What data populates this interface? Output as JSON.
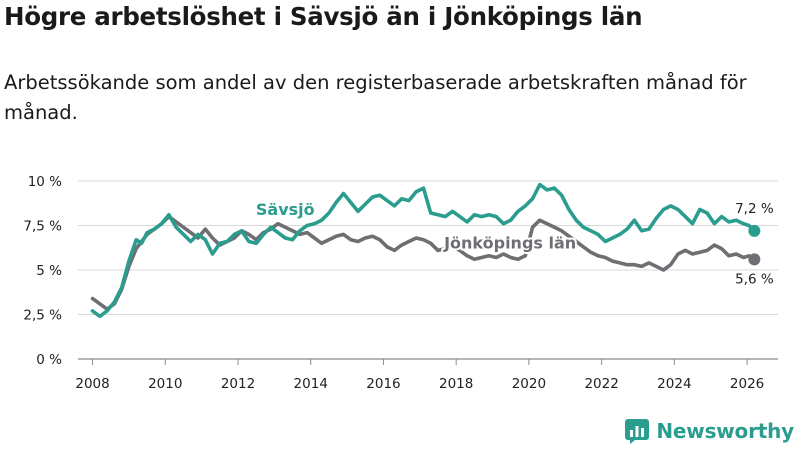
{
  "header": {
    "title": "Högre arbetslöshet i Sävsjö än i Jönköpings län",
    "subtitle": "Arbetssökande som andel av den registerbaserade arbetskraften månad för månad."
  },
  "brand": {
    "name": "Newsworthy",
    "icon": "newsworthy-logo-icon"
  },
  "chart_data": {
    "type": "line",
    "title": "Högre arbetslöshet i Sävsjö än i Jönköpings län",
    "subtitle": "Arbetssökande som andel av den registerbaserade arbetskraften månad för månad.",
    "xlabel": "",
    "ylabel": "",
    "xlim": [
      2007.6,
      2026.85
    ],
    "ylim": [
      0,
      10
    ],
    "grid": true,
    "x_ticks": [
      2008,
      2010,
      2012,
      2014,
      2016,
      2018,
      2020,
      2022,
      2024,
      2026
    ],
    "x_tick_labels": [
      "2008",
      "2010",
      "2012",
      "2014",
      "2016",
      "2018",
      "2020",
      "2022",
      "2024",
      "2026"
    ],
    "y_ticks": [
      0,
      2.5,
      5,
      7.5,
      10
    ],
    "y_tick_labels": [
      "0 %",
      "2,5 %",
      "5 %",
      "7,5 %",
      "10 %"
    ],
    "series": [
      {
        "name": "Sävsjö",
        "color": "#2a9d8f",
        "end_label": "7,2 %",
        "x": [
          2008.0,
          2008.2,
          2008.4,
          2008.6,
          2008.8,
          2009.0,
          2009.2,
          2009.35,
          2009.5,
          2009.7,
          2009.9,
          2010.1,
          2010.3,
          2010.5,
          2010.7,
          2010.9,
          2011.1,
          2011.3,
          2011.5,
          2011.7,
          2011.9,
          2012.1,
          2012.3,
          2012.5,
          2012.7,
          2012.9,
          2013.1,
          2013.3,
          2013.5,
          2013.7,
          2013.9,
          2014.1,
          2014.3,
          2014.5,
          2014.7,
          2014.9,
          2015.1,
          2015.3,
          2015.5,
          2015.7,
          2015.9,
          2016.1,
          2016.3,
          2016.5,
          2016.7,
          2016.9,
          2017.1,
          2017.3,
          2017.5,
          2017.7,
          2017.9,
          2018.1,
          2018.3,
          2018.5,
          2018.7,
          2018.9,
          2019.1,
          2019.3,
          2019.5,
          2019.7,
          2019.9,
          2020.1,
          2020.3,
          2020.5,
          2020.7,
          2020.9,
          2021.1,
          2021.3,
          2021.5,
          2021.7,
          2021.9,
          2022.1,
          2022.3,
          2022.5,
          2022.7,
          2022.9,
          2023.1,
          2023.3,
          2023.5,
          2023.7,
          2023.9,
          2024.1,
          2024.3,
          2024.5,
          2024.7,
          2024.9,
          2025.1,
          2025.3,
          2025.5,
          2025.7,
          2025.9,
          2026.05,
          2026.2
        ],
        "values": [
          2.7,
          2.4,
          2.7,
          3.2,
          4.0,
          5.5,
          6.7,
          6.5,
          7.1,
          7.3,
          7.6,
          8.1,
          7.4,
          7.0,
          6.6,
          7.0,
          6.7,
          5.9,
          6.5,
          6.6,
          7.0,
          7.2,
          6.6,
          6.5,
          7.0,
          7.4,
          7.1,
          6.8,
          6.7,
          7.2,
          7.5,
          7.6,
          7.8,
          8.2,
          8.8,
          9.3,
          8.8,
          8.3,
          8.7,
          9.1,
          9.2,
          8.9,
          8.6,
          9.0,
          8.9,
          9.4,
          9.6,
          8.2,
          8.1,
          8.0,
          8.3,
          8.0,
          7.7,
          8.1,
          8.0,
          8.1,
          8.0,
          7.6,
          7.8,
          8.3,
          8.6,
          9.0,
          9.8,
          9.5,
          9.6,
          9.2,
          8.4,
          7.8,
          7.4,
          7.2,
          7.0,
          6.6,
          6.8,
          7.0,
          7.3,
          7.8,
          7.2,
          7.3,
          7.9,
          8.4,
          8.6,
          8.4,
          8.0,
          7.6,
          8.4,
          8.2,
          7.6,
          8.0,
          7.7,
          7.8,
          7.6,
          7.5,
          7.2
        ]
      },
      {
        "name": "Jönköpings län",
        "color": "#6e6e73",
        "end_label": "5,6 %",
        "x": [
          2008.0,
          2008.2,
          2008.4,
          2008.6,
          2008.8,
          2009.0,
          2009.2,
          2009.35,
          2009.5,
          2009.7,
          2009.9,
          2010.1,
          2010.3,
          2010.5,
          2010.7,
          2010.9,
          2011.1,
          2011.3,
          2011.5,
          2011.7,
          2011.9,
          2012.1,
          2012.3,
          2012.5,
          2012.7,
          2012.9,
          2013.1,
          2013.3,
          2013.5,
          2013.7,
          2013.9,
          2014.1,
          2014.3,
          2014.5,
          2014.7,
          2014.9,
          2015.1,
          2015.3,
          2015.5,
          2015.7,
          2015.9,
          2016.1,
          2016.3,
          2016.5,
          2016.7,
          2016.9,
          2017.1,
          2017.3,
          2017.5,
          2017.7,
          2017.9,
          2018.1,
          2018.3,
          2018.5,
          2018.7,
          2018.9,
          2019.1,
          2019.3,
          2019.5,
          2019.7,
          2019.9,
          2020.1,
          2020.3,
          2020.5,
          2020.7,
          2020.9,
          2021.1,
          2021.3,
          2021.5,
          2021.7,
          2021.9,
          2022.1,
          2022.3,
          2022.5,
          2022.7,
          2022.9,
          2023.1,
          2023.3,
          2023.5,
          2023.7,
          2023.9,
          2024.1,
          2024.3,
          2024.5,
          2024.7,
          2024.9,
          2025.1,
          2025.3,
          2025.5,
          2025.7,
          2025.9,
          2026.05,
          2026.2
        ],
        "values": [
          3.4,
          3.1,
          2.8,
          3.1,
          3.9,
          5.2,
          6.2,
          6.6,
          7.0,
          7.3,
          7.6,
          8.0,
          7.7,
          7.4,
          7.1,
          6.8,
          7.3,
          6.8,
          6.4,
          6.6,
          6.8,
          7.2,
          7.0,
          6.7,
          7.1,
          7.3,
          7.6,
          7.4,
          7.2,
          7.0,
          7.1,
          6.8,
          6.5,
          6.7,
          6.9,
          7.0,
          6.7,
          6.6,
          6.8,
          6.9,
          6.7,
          6.3,
          6.1,
          6.4,
          6.6,
          6.8,
          6.7,
          6.5,
          6.1,
          6.2,
          6.3,
          6.1,
          5.8,
          5.6,
          5.7,
          5.8,
          5.7,
          5.9,
          5.7,
          5.6,
          5.8,
          7.4,
          7.8,
          7.6,
          7.4,
          7.2,
          6.9,
          6.6,
          6.3,
          6.0,
          5.8,
          5.7,
          5.5,
          5.4,
          5.3,
          5.3,
          5.2,
          5.4,
          5.2,
          5.0,
          5.3,
          5.9,
          6.1,
          5.9,
          6.0,
          6.1,
          6.4,
          6.2,
          5.8,
          5.9,
          5.7,
          5.8,
          5.6
        ]
      }
    ]
  }
}
